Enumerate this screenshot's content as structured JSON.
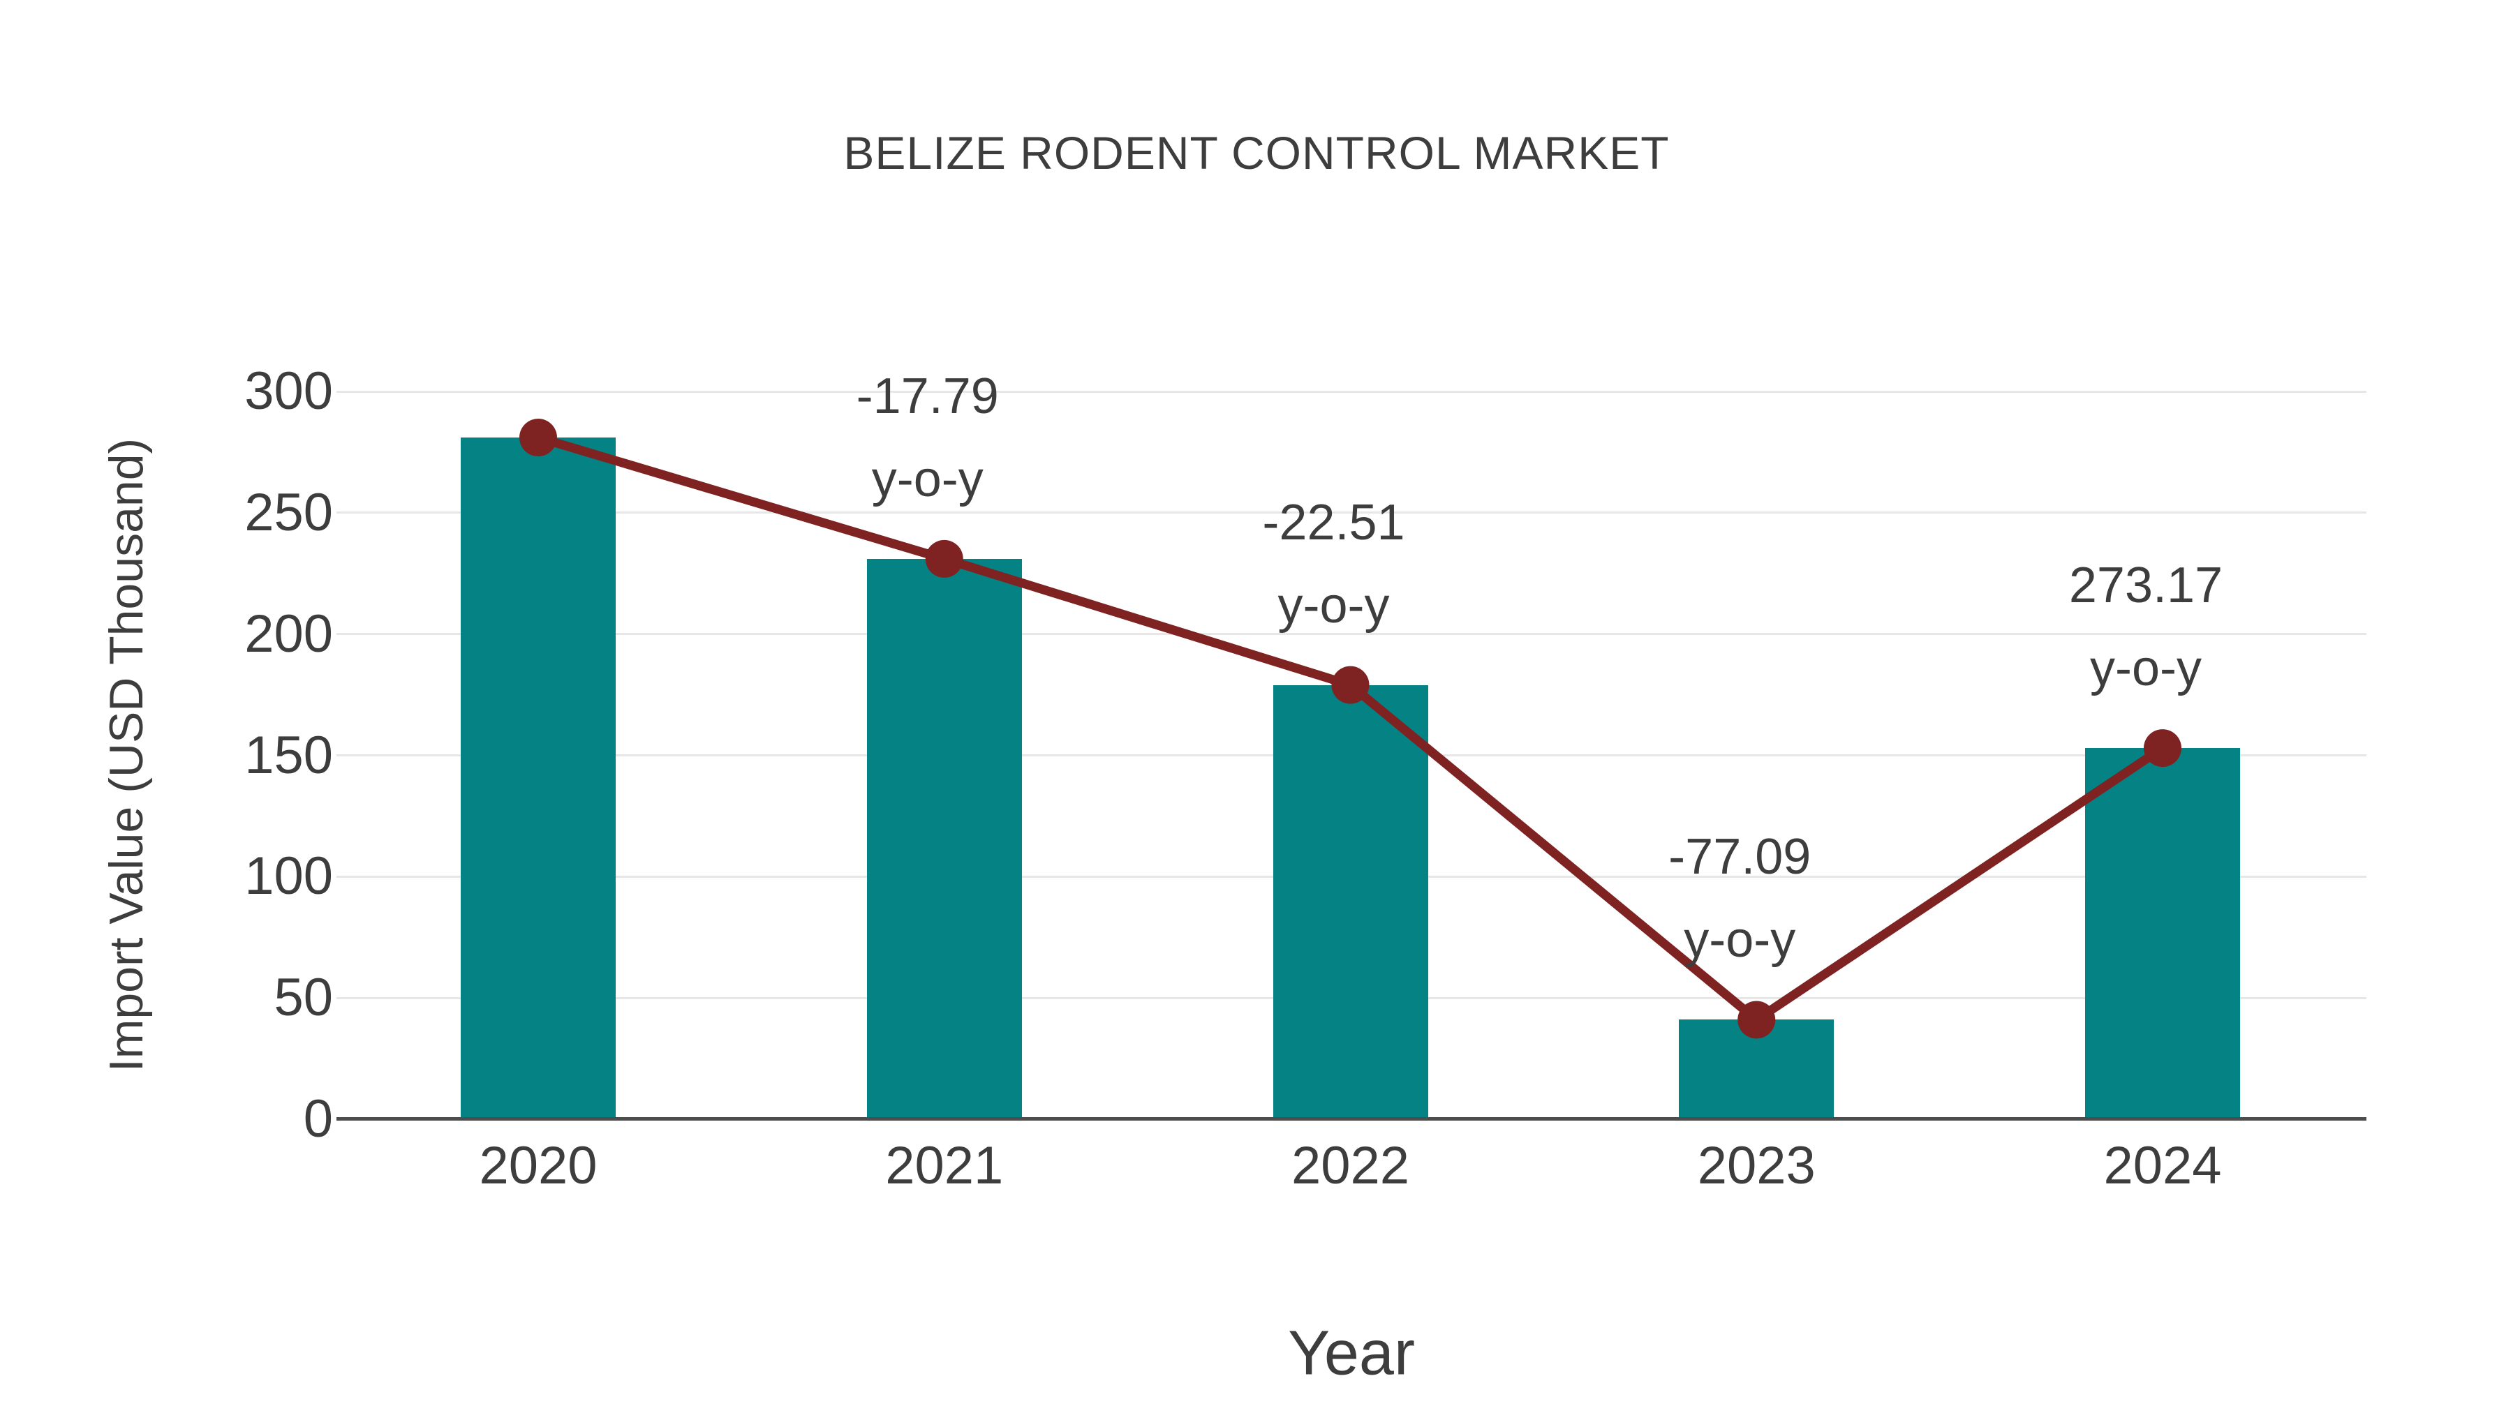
{
  "chart_data": {
    "type": "bar",
    "title": "BELIZE RODENT CONTROL MARKET",
    "xlabel": "Year",
    "ylabel": "Import Value (USD Thousand)",
    "categories": [
      "2020",
      "2021",
      "2022",
      "2023",
      "2024"
    ],
    "series": [
      {
        "type": "bar",
        "color": "#058384",
        "values": [
          281,
          231,
          179,
          41,
          153
        ]
      },
      {
        "type": "line",
        "color": "#7e2222",
        "values": [
          281,
          231,
          179,
          41,
          153
        ]
      }
    ],
    "annotations": [
      {
        "category": "2021",
        "lines": [
          "-17.79",
          "y-o-y"
        ]
      },
      {
        "category": "2022",
        "lines": [
          "-22.51",
          "y-o-y"
        ]
      },
      {
        "category": "2023",
        "lines": [
          "-77.09",
          "y-o-y"
        ]
      },
      {
        "category": "2024",
        "lines": [
          "273.17",
          "y-o-y"
        ]
      }
    ],
    "ylim": [
      0,
      300
    ],
    "yticks": [
      0,
      50,
      100,
      150,
      200,
      250,
      300
    ],
    "grid": true,
    "legend_position": "none",
    "colors": {
      "text": "#3d3d3d",
      "grid": "#e7e7e7",
      "axis": "#4d4d4d",
      "background": "#ffffff"
    }
  }
}
